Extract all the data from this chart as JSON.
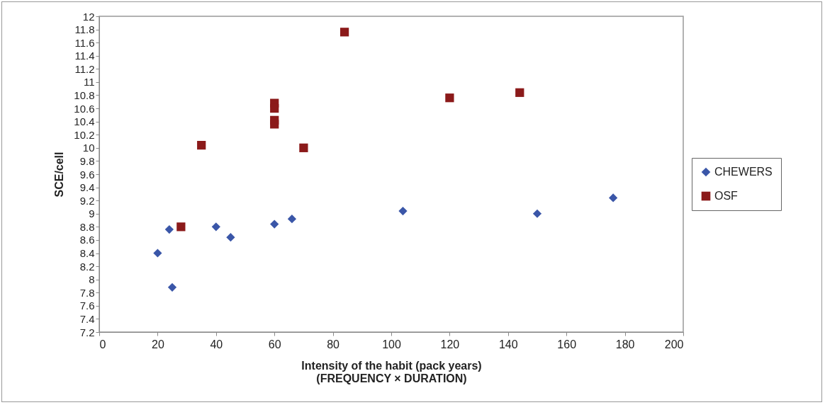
{
  "chart_data": {
    "type": "scatter",
    "xlabel": "Intensity of the habit (pack years)\n(FREQUENCY × DURATION)",
    "ylabel": "SCE/cell",
    "xlim": [
      0,
      200
    ],
    "xticks": [
      0,
      20,
      40,
      60,
      80,
      100,
      120,
      140,
      160,
      180,
      200
    ],
    "ylim": [
      7.2,
      12
    ],
    "yticks": [
      7.2,
      7.4,
      7.6,
      7.8,
      8,
      8.2,
      8.4,
      8.6,
      8.8,
      9,
      9.2,
      9.4,
      9.6,
      9.8,
      10,
      10.2,
      10.4,
      10.6,
      10.8,
      11,
      11.2,
      11.4,
      11.6,
      11.8,
      12
    ],
    "grid": false,
    "legend": "right",
    "series": [
      {
        "name": "CHEWERS",
        "color": "#3a56a8",
        "marker": "diamond",
        "x": [
          20,
          24,
          25,
          40,
          45,
          60,
          66,
          104,
          150,
          176
        ],
        "values": [
          8.4,
          8.76,
          7.88,
          8.8,
          8.64,
          8.84,
          8.92,
          9.04,
          9,
          9.24
        ]
      },
      {
        "name": "OSF",
        "color": "#8b1a1a",
        "marker": "square",
        "x": [
          28,
          35,
          60,
          60,
          60,
          60,
          70,
          84,
          120,
          144
        ],
        "values": [
          8.8,
          10.04,
          10.68,
          10.6,
          10.42,
          10.36,
          10,
          11.76,
          10.76,
          10.84
        ]
      }
    ]
  }
}
